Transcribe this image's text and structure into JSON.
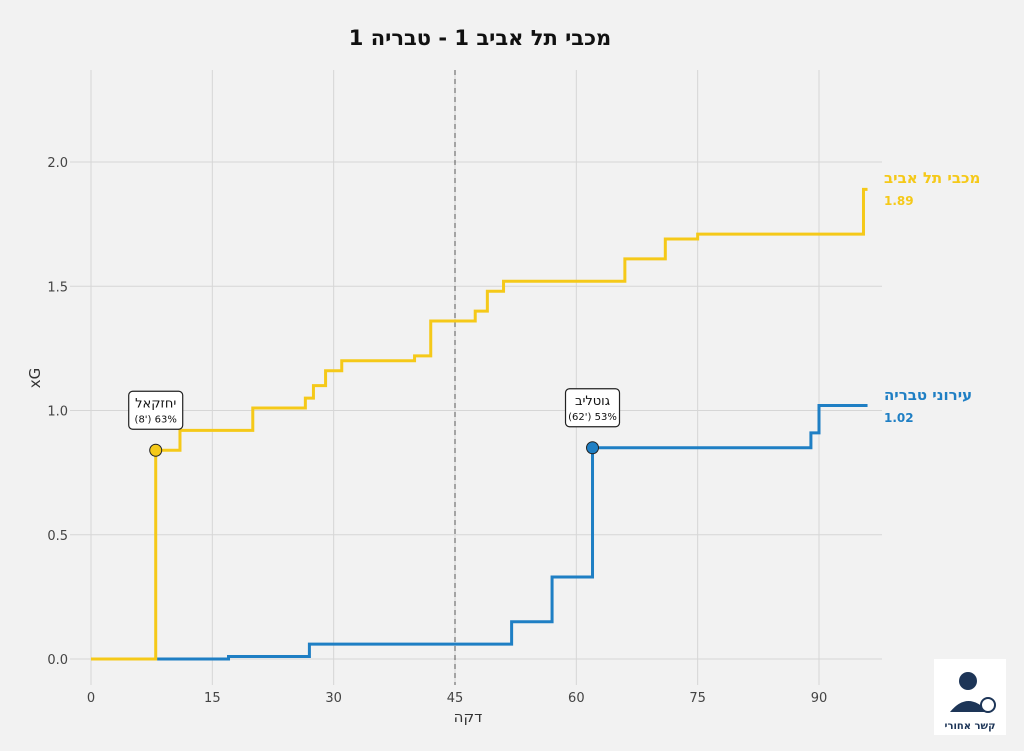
{
  "chart_data": {
    "type": "line",
    "step": true,
    "title": "מכבי תל אביב 1 - טבריה 1",
    "xlabel": "דקה",
    "ylabel": "xG",
    "xlim": [
      -3,
      97
    ],
    "ylim": [
      -0.1,
      2.3
    ],
    "xticks": [
      0,
      15,
      30,
      45,
      60,
      75,
      90
    ],
    "yticks": [
      0.0,
      0.5,
      1.0,
      1.5,
      2.0
    ],
    "ytick_labels": [
      "0.0",
      "0.5",
      "1.0",
      "1.5",
      "2.0"
    ],
    "grid": true,
    "halftime_line": 45,
    "series": [
      {
        "name": "מכבי תל אביב",
        "total_label": "1.89",
        "color": "#f5c919",
        "x": [
          0,
          8,
          11,
          20,
          26.5,
          27.5,
          29,
          31,
          40,
          42,
          47.5,
          49,
          51,
          66,
          71,
          75,
          95.5,
          96
        ],
        "y": [
          0,
          0.84,
          0.92,
          1.01,
          1.05,
          1.1,
          1.16,
          1.2,
          1.22,
          1.36,
          1.4,
          1.48,
          1.52,
          1.61,
          1.69,
          1.71,
          1.89,
          1.89
        ],
        "goal": {
          "minute": 8,
          "xg": 0.84,
          "player": "יחזקאל",
          "detail": "(8') 63%"
        }
      },
      {
        "name": "עירוני טבריה",
        "total_label": "1.02",
        "color": "#1f7fc4",
        "x": [
          0,
          17,
          27,
          52,
          57,
          62,
          89,
          90,
          96
        ],
        "y": [
          0,
          0.01,
          0.06,
          0.15,
          0.33,
          0.85,
          0.91,
          1.02,
          1.02
        ],
        "goal": {
          "minute": 62,
          "xg": 0.85,
          "player": "גוטליב",
          "detail": "(62') 53%"
        }
      }
    ]
  },
  "logo": {
    "text": "קשר אחורי"
  }
}
